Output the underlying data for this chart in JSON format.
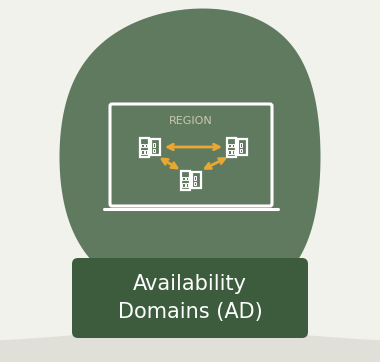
{
  "bg_color": "#f2f2ed",
  "blob_color": "#607a60",
  "region_box_color": "#ffffff",
  "region_label": "REGION",
  "region_label_color": "#c8c8b0",
  "arrow_color": "#e8a832",
  "server_icon_color": "#ffffff",
  "label_text": "Availability\nDomains (AD)",
  "label_bg_color": "#3d5c3d",
  "label_text_color": "#ffffff",
  "label_fontsize": 15,
  "region_label_fontsize": 8,
  "fig_width": 3.8,
  "fig_height": 3.62,
  "dpi": 100,
  "wave_color": "#e0e0d8"
}
